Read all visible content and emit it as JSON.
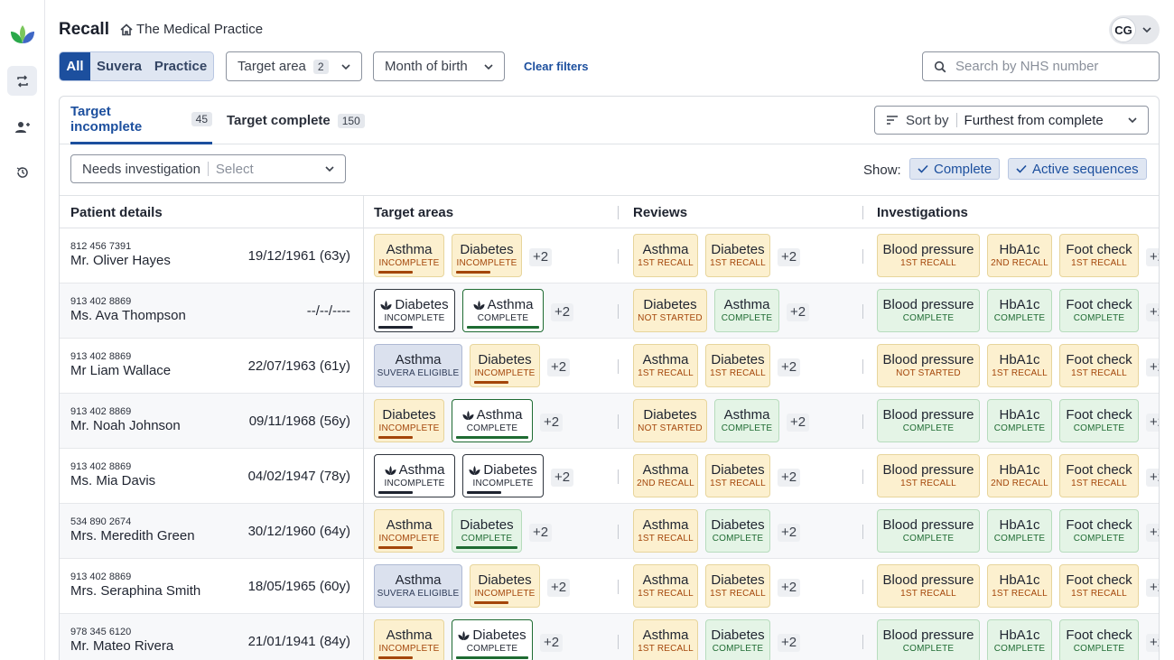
{
  "app": {
    "title": "Recall",
    "practice": "The Medical Practice",
    "user_initials": "CG"
  },
  "filters": {
    "segments": [
      "All",
      "Suvera",
      "Practice"
    ],
    "target_area_label": "Target area",
    "target_area_count": "2",
    "month_label": "Month of birth",
    "clear_label": "Clear filters",
    "search_placeholder": "Search by NHS number"
  },
  "tabs": [
    {
      "label": "Target incomplete",
      "count": "45"
    },
    {
      "label": "Target complete",
      "count": "150"
    }
  ],
  "sort": {
    "label": "Sort by",
    "value": "Furthest from complete"
  },
  "investigation_filter": {
    "label": "Needs investigation",
    "placeholder": "Select"
  },
  "show": {
    "label": "Show:",
    "chips": [
      "Complete",
      "Active sequences"
    ]
  },
  "columns": [
    "Patient details",
    "Target areas",
    "Reviews",
    "Investigations"
  ],
  "more_label": "+2",
  "colors": {
    "accent": "#1c4f9e",
    "incomplete": "#a4460a",
    "complete": "#1e6b32"
  },
  "rows": [
    {
      "nhs": "812 456 7391",
      "name": "Mr. Oliver Hayes",
      "dob": "19/12/1961 (63y)",
      "targets": [
        {
          "l": "Asthma",
          "s": "INCOMPLETE"
        },
        {
          "l": "Diabetes",
          "s": "INCOMPLETE"
        }
      ],
      "reviews": [
        {
          "l": "Asthma",
          "s": "1ST RECALL"
        },
        {
          "l": "Diabetes",
          "s": "1ST RECALL"
        }
      ],
      "investigations": [
        {
          "l": "Blood pressure",
          "s": "1ST RECALL"
        },
        {
          "l": "HbA1c",
          "s": "2ND RECALL"
        },
        {
          "l": "Foot check",
          "s": "1ST RECALL"
        }
      ]
    },
    {
      "nhs": "913 402 8869",
      "name": "Ms. Ava Thompson",
      "dob": "--/--/----",
      "targets": [
        {
          "l": "Diabetes",
          "s": "INCOMPLETE"
        },
        {
          "l": "Asthma",
          "s": "COMPLETE"
        }
      ],
      "reviews": [
        {
          "l": "Diabetes",
          "s": "NOT STARTED"
        },
        {
          "l": "Asthma",
          "s": "COMPLETE"
        }
      ],
      "investigations": [
        {
          "l": "Blood pressure",
          "s": "COMPLETE"
        },
        {
          "l": "HbA1c",
          "s": "COMPLETE"
        },
        {
          "l": "Foot check",
          "s": "COMPLETE"
        }
      ]
    },
    {
      "nhs": "913 402 8869",
      "name": "Mr Liam Wallace",
      "dob": "22/07/1963 (61y)",
      "targets": [
        {
          "l": "Asthma",
          "s": "SUVERA ELIGIBLE"
        },
        {
          "l": "Diabetes",
          "s": "INCOMPLETE"
        }
      ],
      "reviews": [
        {
          "l": "Asthma",
          "s": "1ST RECALL"
        },
        {
          "l": "Diabetes",
          "s": "1ST RECALL"
        }
      ],
      "investigations": [
        {
          "l": "Blood pressure",
          "s": "NOT STARTED"
        },
        {
          "l": "HbA1c",
          "s": "1ST RECALL"
        },
        {
          "l": "Foot check",
          "s": "1ST RECALL"
        }
      ]
    },
    {
      "nhs": "913 402 8869",
      "name": "Mr. Noah Johnson",
      "dob": "09/11/1968 (56y)",
      "targets": [
        {
          "l": "Diabetes",
          "s": "INCOMPLETE"
        },
        {
          "l": "Asthma",
          "s": "COMPLETE"
        }
      ],
      "reviews": [
        {
          "l": "Diabetes",
          "s": "NOT STARTED"
        },
        {
          "l": "Asthma",
          "s": "COMPLETE"
        }
      ],
      "investigations": [
        {
          "l": "Blood pressure",
          "s": "COMPLETE"
        },
        {
          "l": "HbA1c",
          "s": "COMPLETE"
        },
        {
          "l": "Foot check",
          "s": "COMPLETE"
        }
      ]
    },
    {
      "nhs": "913 402 8869",
      "name": "Ms. Mia Davis",
      "dob": "04/02/1947 (78y)",
      "targets": [
        {
          "l": "Asthma",
          "s": "INCOMPLETE"
        },
        {
          "l": "Diabetes",
          "s": "INCOMPLETE"
        }
      ],
      "reviews": [
        {
          "l": "Asthma",
          "s": "2ND RECALL"
        },
        {
          "l": "Diabetes",
          "s": "1ST RECALL"
        }
      ],
      "investigations": [
        {
          "l": "Blood pressure",
          "s": "1ST RECALL"
        },
        {
          "l": "HbA1c",
          "s": "2ND RECALL"
        },
        {
          "l": "Foot check",
          "s": "1ST RECALL"
        }
      ]
    },
    {
      "nhs": "534 890 2674",
      "name": "Mrs. Meredith Green",
      "dob": "30/12/1960 (64y)",
      "targets": [
        {
          "l": "Asthma",
          "s": "INCOMPLETE"
        },
        {
          "l": "Diabetes",
          "s": "COMPLETE"
        }
      ],
      "reviews": [
        {
          "l": "Asthma",
          "s": "1ST RECALL"
        },
        {
          "l": "Diabetes",
          "s": "COMPLETE"
        }
      ],
      "investigations": [
        {
          "l": "Blood pressure",
          "s": "COMPLETE"
        },
        {
          "l": "HbA1c",
          "s": "COMPLETE"
        },
        {
          "l": "Foot check",
          "s": "COMPLETE"
        }
      ]
    },
    {
      "nhs": "913 402 8869",
      "name": "Mrs. Seraphina Smith",
      "dob": "18/05/1965 (60y)",
      "targets": [
        {
          "l": "Asthma",
          "s": "SUVERA ELIGIBLE"
        },
        {
          "l": "Diabetes",
          "s": "INCOMPLETE"
        }
      ],
      "reviews": [
        {
          "l": "Asthma",
          "s": "1ST RECALL"
        },
        {
          "l": "Diabetes",
          "s": "1ST RECALL"
        }
      ],
      "investigations": [
        {
          "l": "Blood pressure",
          "s": "1ST RECALL"
        },
        {
          "l": "HbA1c",
          "s": "1ST RECALL"
        },
        {
          "l": "Foot check",
          "s": "1ST RECALL"
        }
      ]
    },
    {
      "nhs": "978 345 6120",
      "name": "Mr. Mateo Rivera",
      "dob": "21/01/1941 (84y)",
      "targets": [
        {
          "l": "Asthma",
          "s": "INCOMPLETE"
        },
        {
          "l": "Diabetes",
          "s": "COMPLETE"
        }
      ],
      "reviews": [
        {
          "l": "Asthma",
          "s": "1ST RECALL"
        },
        {
          "l": "Diabetes",
          "s": "COMPLETE"
        }
      ],
      "investigations": [
        {
          "l": "Blood pressure",
          "s": "COMPLETE"
        },
        {
          "l": "HbA1c",
          "s": "COMPLETE"
        },
        {
          "l": "Foot check",
          "s": "COMPLETE"
        }
      ]
    }
  ]
}
